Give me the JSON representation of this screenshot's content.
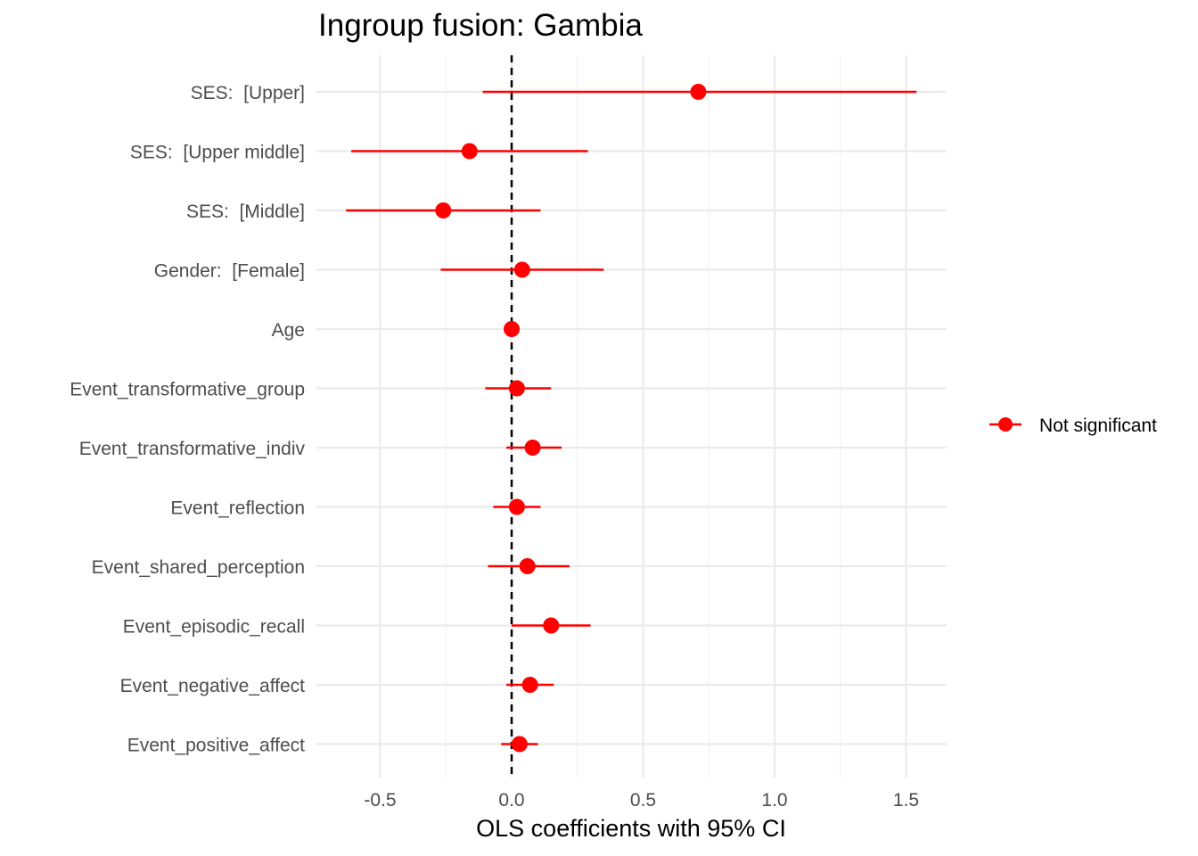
{
  "chart_data": {
    "type": "scatter",
    "subtype": "coefficient-plot-with-error-bars",
    "title": "Ingroup fusion: Gambia",
    "xlabel": "OLS coefficients with 95% CI",
    "ylabel": "",
    "xlim": [
      -0.75,
      1.65
    ],
    "x_ticks": [
      -0.5,
      0.0,
      0.5,
      1.0,
      1.5
    ],
    "x_tick_labels": [
      "-0.5",
      "0.0",
      "0.5",
      "1.0",
      "1.5"
    ],
    "reference_line": 0,
    "grid": true,
    "legend_position": "right",
    "series": [
      {
        "name": "Not significant",
        "color": "#ff0000",
        "points": [
          {
            "label": "SES:  [Upper]",
            "estimate": 0.71,
            "ci_low": -0.11,
            "ci_high": 1.54
          },
          {
            "label": "SES:  [Upper middle]",
            "estimate": -0.16,
            "ci_low": -0.61,
            "ci_high": 0.29
          },
          {
            "label": "SES:  [Middle]",
            "estimate": -0.26,
            "ci_low": -0.63,
            "ci_high": 0.11
          },
          {
            "label": "Gender:  [Female]",
            "estimate": 0.04,
            "ci_low": -0.27,
            "ci_high": 0.35
          },
          {
            "label": "Age",
            "estimate": 0.0,
            "ci_low": -0.01,
            "ci_high": 0.01
          },
          {
            "label": "Event_transformative_group",
            "estimate": 0.02,
            "ci_low": -0.1,
            "ci_high": 0.15
          },
          {
            "label": "Event_transformative_indiv",
            "estimate": 0.08,
            "ci_low": -0.02,
            "ci_high": 0.19
          },
          {
            "label": "Event_reflection",
            "estimate": 0.02,
            "ci_low": -0.07,
            "ci_high": 0.11
          },
          {
            "label": "Event_shared_perception",
            "estimate": 0.06,
            "ci_low": -0.09,
            "ci_high": 0.22
          },
          {
            "label": "Event_episodic_recall",
            "estimate": 0.15,
            "ci_low": 0.0,
            "ci_high": 0.3
          },
          {
            "label": "Event_negative_affect",
            "estimate": 0.07,
            "ci_low": -0.02,
            "ci_high": 0.16
          },
          {
            "label": "Event_positive_affect",
            "estimate": 0.03,
            "ci_low": -0.04,
            "ci_high": 0.1
          }
        ]
      }
    ]
  }
}
